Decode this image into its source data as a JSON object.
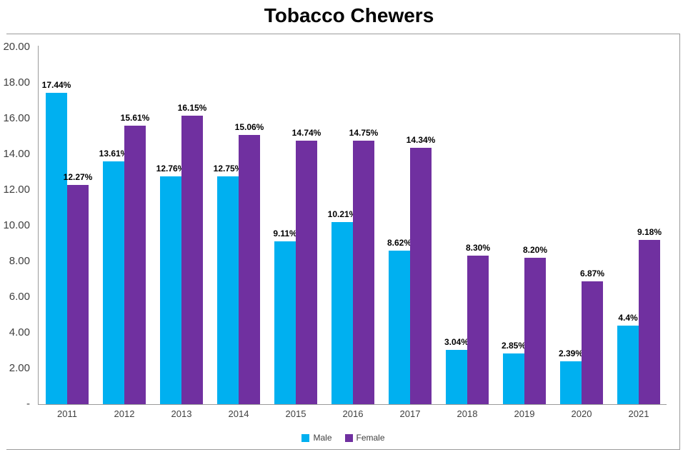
{
  "title": "Tobacco Chewers",
  "chart_data": {
    "type": "bar",
    "title": "Tobacco Chewers",
    "xlabel": "",
    "ylabel": "",
    "categories": [
      "2011",
      "2012",
      "2013",
      "2014",
      "2015",
      "2016",
      "2017",
      "2018",
      "2019",
      "2020",
      "2021"
    ],
    "series": [
      {
        "name": "Male",
        "color": "#00B0F0",
        "values": [
          17.44,
          13.61,
          12.76,
          12.75,
          9.11,
          10.21,
          8.62,
          3.04,
          2.85,
          2.39,
          4.4
        ],
        "labels": [
          "17.44%",
          "13.61%",
          "12.76%",
          "12.75%",
          "9.11%",
          "10.21%",
          "8.62%",
          "3.04%",
          "2.85%",
          "2.39%",
          "4.4%"
        ]
      },
      {
        "name": "Female",
        "color": "#7030A0",
        "values": [
          12.27,
          15.61,
          16.15,
          15.06,
          14.74,
          14.75,
          14.34,
          8.3,
          8.2,
          6.87,
          9.18
        ],
        "labels": [
          "12.27%",
          "15.61%",
          "16.15%",
          "15.06%",
          "14.74%",
          "14.75%",
          "14.34%",
          "8.30%",
          "8.20%",
          "6.87%",
          "9.18%"
        ]
      }
    ],
    "y_axis": {
      "min": 0,
      "max": 20,
      "tick_interval": 2,
      "ticks": [
        {
          "value": 0,
          "label": "-"
        },
        {
          "value": 2,
          "label": "2.00"
        },
        {
          "value": 4,
          "label": "4.00"
        },
        {
          "value": 6,
          "label": "6.00"
        },
        {
          "value": 8,
          "label": "8.00"
        },
        {
          "value": 10,
          "label": "10.00"
        },
        {
          "value": 12,
          "label": "12.00"
        },
        {
          "value": 14,
          "label": "14.00"
        },
        {
          "value": 16,
          "label": "16.00"
        },
        {
          "value": 18,
          "label": "18.00"
        },
        {
          "value": 20,
          "label": "20.00"
        }
      ]
    },
    "grid": false,
    "legend_position": "bottom",
    "colors": {
      "male": "#00B0F0",
      "female": "#7030A0",
      "axis_line": "#9b9b9b",
      "border": "#9b9b9b",
      "tick_text": "#404040",
      "data_label_text": "#000000",
      "title_text": "#000000",
      "background": "#ffffff"
    }
  }
}
